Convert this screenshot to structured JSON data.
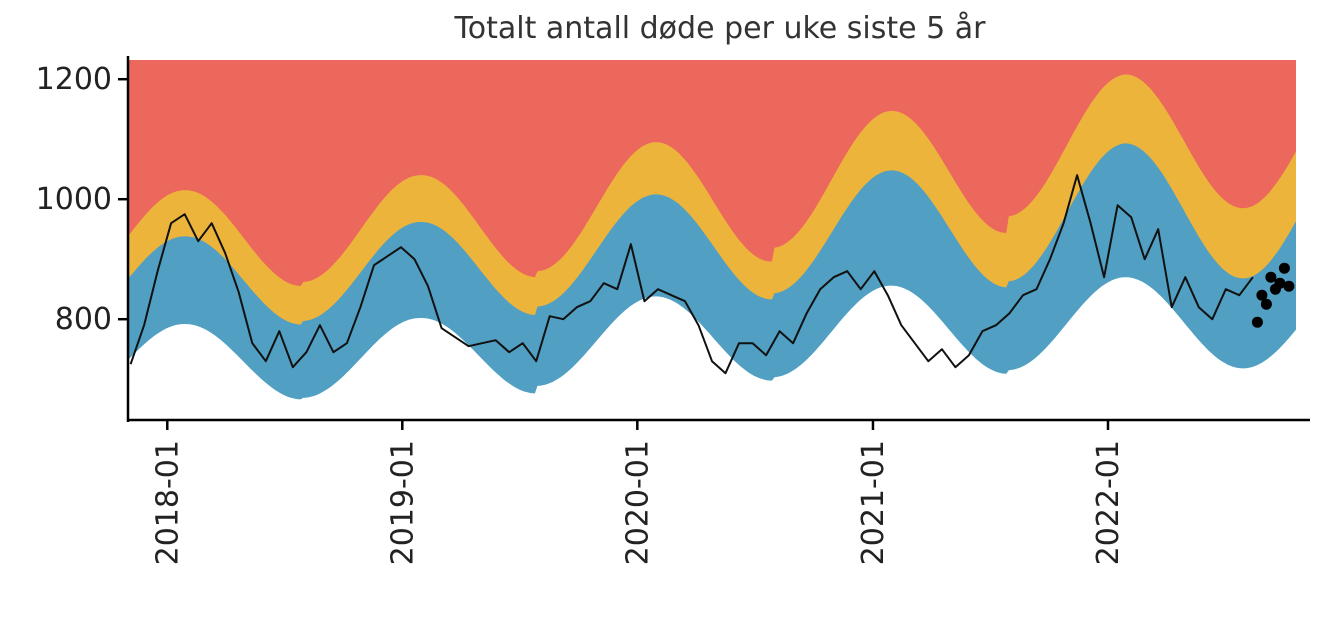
{
  "chart_data": {
    "type": "area",
    "title": "Totalt antall døde per uke siste 5 år",
    "xlabel": "",
    "ylabel": "",
    "x_range": [
      "2017-11-01",
      "2022-10-20"
    ],
    "ylim": [
      632,
      1232
    ],
    "y_ticks": [
      800,
      1000,
      1200
    ],
    "x_ticks": [
      {
        "label": "2018-01",
        "date": "2018-01-01"
      },
      {
        "label": "2019-01",
        "date": "2019-01-01"
      },
      {
        "label": "2020-01",
        "date": "2020-01-01"
      },
      {
        "label": "2021-01",
        "date": "2021-01-01"
      },
      {
        "label": "2022-01",
        "date": "2022-01-01"
      }
    ],
    "grid": true,
    "legend": "none",
    "colors": {
      "excess_high": "#ec675c",
      "excess_moderate": "#edb43c",
      "normal": "#519fc2",
      "line": "#111111",
      "points": "#000000"
    },
    "band_series": [
      {
        "peak_date": "2018-01-28",
        "lower": [
          792,
          665
        ],
        "upper_normal": [
          938,
          788
        ],
        "upper_moderate": [
          1015,
          852
        ]
      },
      {
        "peak_date": "2019-01-28",
        "lower": [
          802,
          670
        ],
        "upper_normal": [
          962,
          800
        ],
        "upper_moderate": [
          1040,
          865
        ]
      },
      {
        "peak_date": "2020-01-28",
        "lower": [
          838,
          695
        ],
        "upper_normal": [
          1008,
          828
        ],
        "upper_moderate": [
          1095,
          885
        ]
      },
      {
        "peak_date": "2021-01-28",
        "lower": [
          856,
          706
        ],
        "upper_normal": [
          1048,
          848
        ],
        "upper_moderate": [
          1147,
          930
        ]
      },
      {
        "peak_date": "2022-01-28",
        "lower": [
          870,
          718
        ],
        "upper_normal": [
          1093,
          868
        ],
        "upper_moderate": [
          1208,
          985
        ]
      }
    ],
    "deaths_line": {
      "x": [
        "2017-11-05",
        "2017-11-26",
        "2017-12-17",
        "2018-01-07",
        "2018-01-28",
        "2018-02-18",
        "2018-03-11",
        "2018-04-01",
        "2018-04-22",
        "2018-05-13",
        "2018-06-03",
        "2018-06-24",
        "2018-07-15",
        "2018-08-05",
        "2018-08-26",
        "2018-09-16",
        "2018-10-07",
        "2018-10-28",
        "2018-11-18",
        "2018-12-09",
        "2018-12-30",
        "2019-01-20",
        "2019-02-10",
        "2019-03-03",
        "2019-03-24",
        "2019-04-14",
        "2019-05-05",
        "2019-05-26",
        "2019-06-16",
        "2019-07-07",
        "2019-07-28",
        "2019-08-18",
        "2019-09-08",
        "2019-09-29",
        "2019-10-20",
        "2019-11-10",
        "2019-12-01",
        "2019-12-22",
        "2020-01-12",
        "2020-02-02",
        "2020-02-23",
        "2020-03-15",
        "2020-04-05",
        "2020-04-26",
        "2020-05-17",
        "2020-06-07",
        "2020-06-28",
        "2020-07-19",
        "2020-08-09",
        "2020-08-30",
        "2020-09-20",
        "2020-10-11",
        "2020-11-01",
        "2020-11-22",
        "2020-12-13",
        "2021-01-03",
        "2021-01-24",
        "2021-02-14",
        "2021-03-07",
        "2021-03-28",
        "2021-04-18",
        "2021-05-09",
        "2021-05-30",
        "2021-06-20",
        "2021-07-11",
        "2021-08-01",
        "2021-08-22",
        "2021-09-12",
        "2021-10-03",
        "2021-10-24",
        "2021-11-14",
        "2021-12-05",
        "2021-12-26",
        "2022-01-16",
        "2022-02-06",
        "2022-02-27",
        "2022-03-20",
        "2022-04-10",
        "2022-05-01",
        "2022-05-22",
        "2022-06-12",
        "2022-07-03",
        "2022-07-24",
        "2022-08-14"
      ],
      "y": [
        725,
        790,
        880,
        960,
        975,
        930,
        960,
        910,
        845,
        760,
        730,
        780,
        720,
        745,
        790,
        745,
        760,
        820,
        890,
        905,
        920,
        900,
        855,
        785,
        770,
        755,
        760,
        765,
        745,
        760,
        730,
        805,
        800,
        820,
        830,
        860,
        850,
        925,
        830,
        850,
        840,
        830,
        790,
        730,
        710,
        760,
        760,
        740,
        780,
        760,
        810,
        850,
        870,
        880,
        850,
        880,
        840,
        790,
        760,
        730,
        750,
        720,
        740,
        780,
        790,
        810,
        840,
        850,
        900,
        960,
        1040,
        960,
        870,
        990,
        970,
        900,
        950,
        820,
        870,
        820,
        800,
        850,
        840,
        870
      ]
    },
    "provisional_points": {
      "x": [
        "2022-08-21",
        "2022-08-28",
        "2022-09-04",
        "2022-09-11",
        "2022-09-18",
        "2022-09-25",
        "2022-10-02",
        "2022-10-09"
      ],
      "y": [
        795,
        840,
        825,
        870,
        850,
        860,
        885,
        855
      ]
    }
  }
}
